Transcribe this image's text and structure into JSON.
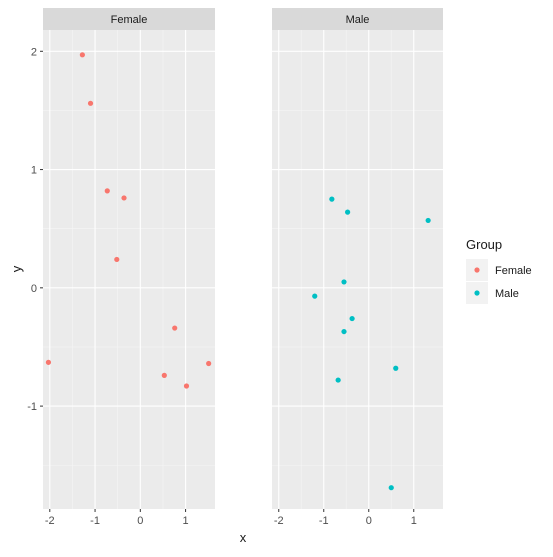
{
  "chart_data": {
    "type": "scatter",
    "facets": [
      {
        "label": "Female",
        "color": "#F8766D",
        "points": [
          {
            "x": -1.28,
            "y": 1.97
          },
          {
            "x": -1.1,
            "y": 1.56
          },
          {
            "x": -0.73,
            "y": 0.82
          },
          {
            "x": -0.36,
            "y": 0.76
          },
          {
            "x": -0.52,
            "y": 0.24
          },
          {
            "x": 0.76,
            "y": -0.34
          },
          {
            "x": -2.03,
            "y": -0.63
          },
          {
            "x": 0.53,
            "y": -0.74
          },
          {
            "x": 1.02,
            "y": -0.83
          },
          {
            "x": 1.51,
            "y": -0.64
          }
        ]
      },
      {
        "label": "Male",
        "color": "#00BFC4",
        "points": [
          {
            "x": -0.82,
            "y": 0.75
          },
          {
            "x": -0.47,
            "y": 0.64
          },
          {
            "x": 1.32,
            "y": 0.57
          },
          {
            "x": -0.55,
            "y": 0.05
          },
          {
            "x": -1.2,
            "y": -0.07
          },
          {
            "x": -0.37,
            "y": -0.26
          },
          {
            "x": -0.55,
            "y": -0.37
          },
          {
            "x": 0.6,
            "y": -0.68
          },
          {
            "x": -0.68,
            "y": -0.78
          },
          {
            "x": 0.5,
            "y": -1.69
          }
        ]
      }
    ],
    "xlabel": "x",
    "ylabel": "y",
    "xlim": [
      -2.15,
      1.65
    ],
    "ylim": [
      -1.87,
      2.18
    ],
    "x_ticks": [
      -2,
      -1,
      0,
      1
    ],
    "y_ticks": [
      -1,
      0,
      1,
      2
    ],
    "grid": true,
    "legend": {
      "title": "Group",
      "position": "right",
      "entries": [
        {
          "label": "Female",
          "color": "#F8766D"
        },
        {
          "label": "Male",
          "color": "#00BFC4"
        }
      ]
    }
  }
}
